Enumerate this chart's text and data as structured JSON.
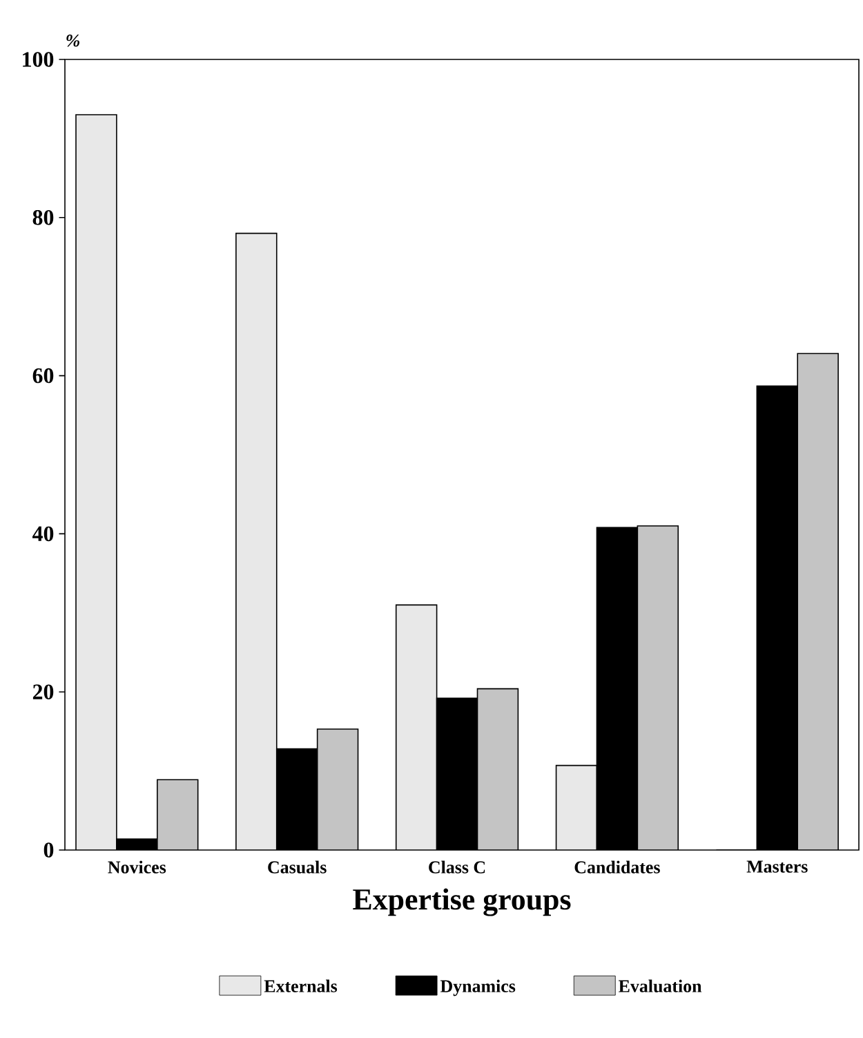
{
  "chart_data": {
    "type": "bar",
    "xlabel": "Expertise groups",
    "ylabel": "%",
    "categories": [
      "Novices",
      "Casuals",
      "Class C",
      "Candidates",
      "Masters"
    ],
    "series": [
      {
        "name": "Externals",
        "color": "#e8e8e8",
        "values": [
          93,
          78,
          31,
          10.7,
          0
        ]
      },
      {
        "name": "Dynamics",
        "color": "#000000",
        "values": [
          1.4,
          12.8,
          19.2,
          40.8,
          58.7
        ]
      },
      {
        "name": "Evaluation",
        "color": "#c4c4c4",
        "values": [
          8.9,
          15.3,
          20.4,
          41,
          62.8
        ]
      }
    ],
    "ylim": [
      0,
      100
    ],
    "yticks": [
      0,
      20,
      40,
      60,
      80,
      100
    ],
    "legend": "bottom"
  }
}
